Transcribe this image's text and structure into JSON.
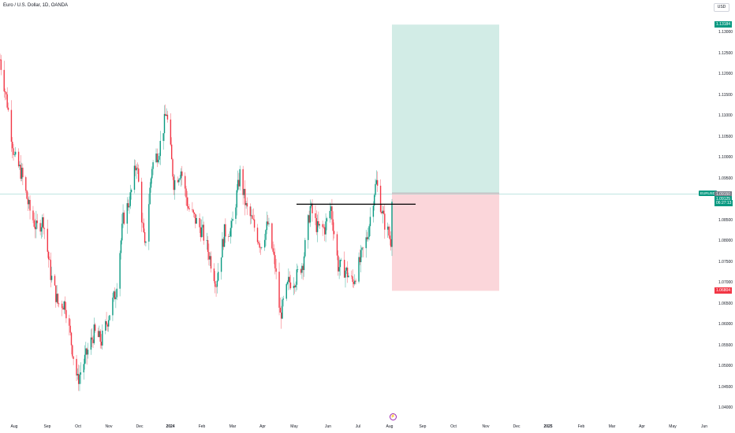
{
  "header": {
    "title": "Euro / U.S. Dollar, 1D, OANDA"
  },
  "currency_button": {
    "label": "USD"
  },
  "symbol_badge": {
    "label": "EURUSD"
  },
  "event_icon": {
    "glyph": "⚡"
  },
  "colors": {
    "up": "#089981",
    "down": "#f23645",
    "profit_zone": "#d2ece6",
    "loss_zone": "#fbd6da",
    "current_price_line": "#80cbc4",
    "horizontal_line": "#000000",
    "grey_badge": "#787b86"
  },
  "price_scale": {
    "ticks": [
      "1.13000",
      "1.12500",
      "1.12000",
      "1.11500",
      "1.11000",
      "1.10500",
      "1.10000",
      "1.09500",
      "1.08500",
      "1.08000",
      "1.07500",
      "1.07000",
      "1.06500",
      "1.06000",
      "1.05500",
      "1.05000",
      "1.04500",
      "1.04000"
    ],
    "tick_values": [
      1.13,
      1.125,
      1.12,
      1.115,
      1.11,
      1.105,
      1.1,
      1.095,
      1.085,
      1.08,
      1.075,
      1.07,
      1.065,
      1.06,
      1.055,
      1.05,
      1.045,
      1.04
    ],
    "target_badge": {
      "label": "1.13184",
      "value": 1.13184
    },
    "entry_badge": {
      "label": "1.09150",
      "value": 1.0915
    },
    "current_badge": {
      "label": "1.09125",
      "value": 1.09125
    },
    "countdown": "06:27:13",
    "stop_badge": {
      "label": "1.06804",
      "value": 1.06804
    }
  },
  "time_scale": {
    "labels": [
      "Aug",
      "Sep",
      "Oct",
      "Nov",
      "Dec",
      "2024",
      "Feb",
      "Mar",
      "Apr",
      "May",
      "Jun",
      "Jul",
      "Aug",
      "Sep",
      "Oct",
      "Nov",
      "Dec",
      "2025",
      "Feb",
      "Mar",
      "Apr",
      "May",
      "Jun"
    ]
  },
  "drawings": {
    "horizontal_line_value": 1.0888,
    "position_entry": 1.0915,
    "position_target": 1.13184,
    "position_stop": 1.06804,
    "current_price": 1.09125
  },
  "chart_data": {
    "type": "candlestick",
    "symbol": "EURUSD",
    "interval": "1D",
    "x_start": "2023-07-20",
    "x_end": "2024-08-02",
    "close_path": [
      [
        "2023-07-20",
        1.1235
      ],
      [
        "2023-07-27",
        1.113
      ],
      [
        "2023-08-03",
        1.1
      ],
      [
        "2023-08-10",
        1.096
      ],
      [
        "2023-08-17",
        1.088
      ],
      [
        "2023-08-24",
        1.083
      ],
      [
        "2023-08-31",
        1.085
      ],
      [
        "2023-09-07",
        1.072
      ],
      [
        "2023-09-14",
        1.065
      ],
      [
        "2023-09-21",
        1.065
      ],
      [
        "2023-09-28",
        1.054
      ],
      [
        "2023-10-03",
        1.0465
      ],
      [
        "2023-10-12",
        1.053
      ],
      [
        "2023-10-19",
        1.058
      ],
      [
        "2023-10-26",
        1.056
      ],
      [
        "2023-11-02",
        1.062
      ],
      [
        "2023-11-09",
        1.068
      ],
      [
        "2023-11-16",
        1.085
      ],
      [
        "2023-11-23",
        1.0905
      ],
      [
        "2023-11-29",
        1.099
      ],
      [
        "2023-12-07",
        1.078
      ],
      [
        "2023-12-14",
        1.098
      ],
      [
        "2023-12-21",
        1.102
      ],
      [
        "2023-12-28",
        1.111
      ],
      [
        "2024-01-04",
        1.094
      ],
      [
        "2024-01-11",
        1.097
      ],
      [
        "2024-01-18",
        1.088
      ],
      [
        "2024-01-25",
        1.085
      ],
      [
        "2024-02-01",
        1.082
      ],
      [
        "2024-02-08",
        1.076
      ],
      [
        "2024-02-14",
        1.07
      ],
      [
        "2024-02-22",
        1.082
      ],
      [
        "2024-02-29",
        1.083
      ],
      [
        "2024-03-08",
        1.096
      ],
      [
        "2024-03-14",
        1.088
      ],
      [
        "2024-03-21",
        1.084
      ],
      [
        "2024-03-28",
        1.079
      ],
      [
        "2024-04-04",
        1.084
      ],
      [
        "2024-04-11",
        1.074
      ],
      [
        "2024-04-16",
        1.062
      ],
      [
        "2024-04-24",
        1.07
      ],
      [
        "2024-05-01",
        1.071
      ],
      [
        "2024-05-08",
        1.075
      ],
      [
        "2024-05-15",
        1.088
      ],
      [
        "2024-05-22",
        1.083
      ],
      [
        "2024-05-29",
        1.083
      ],
      [
        "2024-06-04",
        1.088
      ],
      [
        "2024-06-11",
        1.074
      ],
      [
        "2024-06-18",
        1.073
      ],
      [
        "2024-06-25",
        1.07
      ],
      [
        "2024-07-02",
        1.075
      ],
      [
        "2024-07-09",
        1.081
      ],
      [
        "2024-07-16",
        1.092
      ],
      [
        "2024-07-18",
        1.094
      ],
      [
        "2024-07-25",
        1.085
      ],
      [
        "2024-08-01",
        1.08
      ],
      [
        "2024-08-02",
        1.0913
      ]
    ],
    "ylim": [
      1.038,
      1.141
    ],
    "grid": false,
    "legend": "none"
  }
}
